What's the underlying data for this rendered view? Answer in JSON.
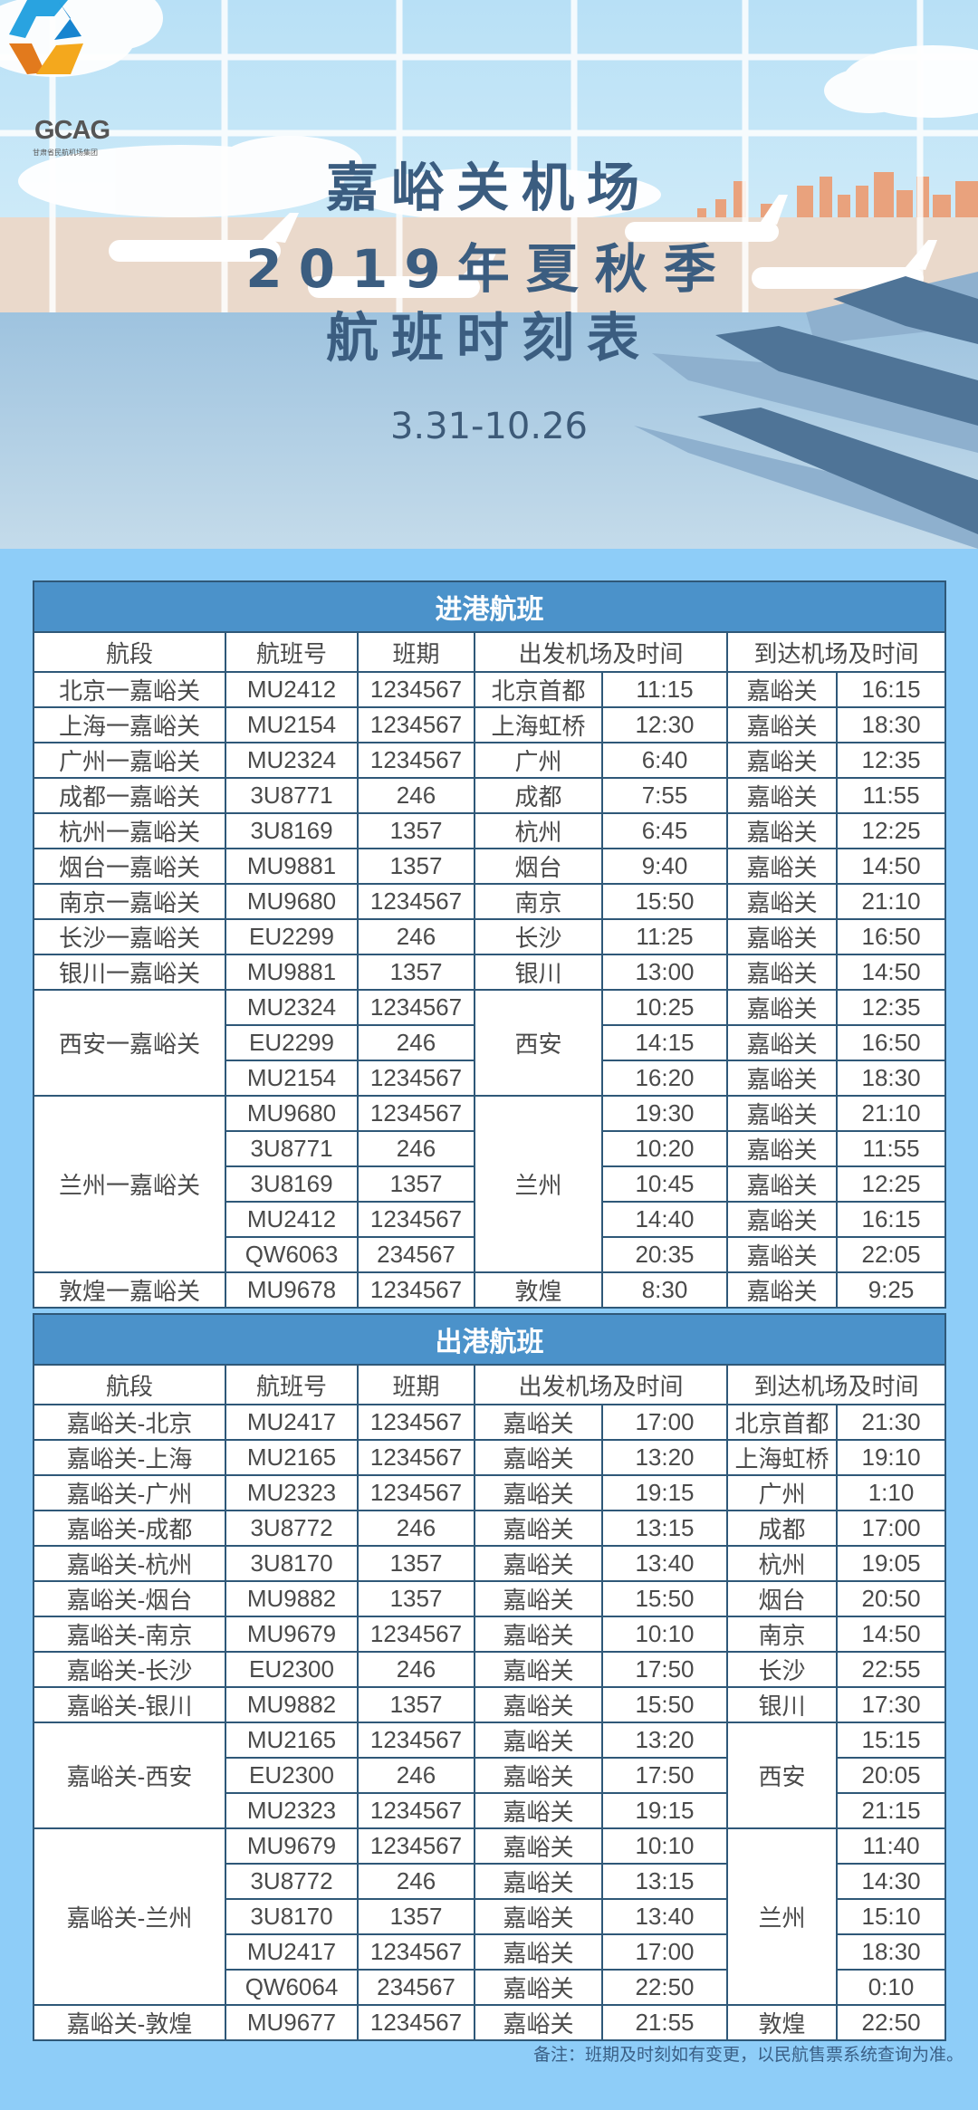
{
  "logo": {
    "text": "GCAG",
    "subtitle": "甘肃省民航机场集团"
  },
  "header": {
    "title_line1": "嘉峪关机场",
    "title_line2": "2019年夏秋季",
    "title_line3": "航班时刻表",
    "date_range": "3.31-10.26"
  },
  "colors": {
    "panel_bg": "#8ecdf8",
    "title_bar": "#4b92ca",
    "border": "#2f5878",
    "title_text": "#3b5d80"
  },
  "columns": [
    "航段",
    "航班号",
    "班期",
    "出发机场及时间",
    "到达机场及时间"
  ],
  "arrivals": {
    "title": "进港航班",
    "groups": [
      {
        "route": "北京一嘉峪关",
        "flights": [
          {
            "flight": "MU2412",
            "days": "1234567",
            "dep_airport": "北京首都",
            "dep_time": "11:15",
            "arr_airport": "嘉峪关",
            "arr_time": "16:15"
          }
        ]
      },
      {
        "route": "上海一嘉峪关",
        "flights": [
          {
            "flight": "MU2154",
            "days": "1234567",
            "dep_airport": "上海虹桥",
            "dep_time": "12:30",
            "arr_airport": "嘉峪关",
            "arr_time": "18:30"
          }
        ]
      },
      {
        "route": "广州一嘉峪关",
        "flights": [
          {
            "flight": "MU2324",
            "days": "1234567",
            "dep_airport": "广州",
            "dep_time": "6:40",
            "arr_airport": "嘉峪关",
            "arr_time": "12:35"
          }
        ]
      },
      {
        "route": "成都一嘉峪关",
        "flights": [
          {
            "flight": "3U8771",
            "days": "246",
            "dep_airport": "成都",
            "dep_time": "7:55",
            "arr_airport": "嘉峪关",
            "arr_time": "11:55"
          }
        ]
      },
      {
        "route": "杭州一嘉峪关",
        "flights": [
          {
            "flight": "3U8169",
            "days": "1357",
            "dep_airport": "杭州",
            "dep_time": "6:45",
            "arr_airport": "嘉峪关",
            "arr_time": "12:25"
          }
        ]
      },
      {
        "route": "烟台一嘉峪关",
        "flights": [
          {
            "flight": "MU9881",
            "days": "1357",
            "dep_airport": "烟台",
            "dep_time": "9:40",
            "arr_airport": "嘉峪关",
            "arr_time": "14:50"
          }
        ]
      },
      {
        "route": "南京一嘉峪关",
        "flights": [
          {
            "flight": "MU9680",
            "days": "1234567",
            "dep_airport": "南京",
            "dep_time": "15:50",
            "arr_airport": "嘉峪关",
            "arr_time": "21:10"
          }
        ]
      },
      {
        "route": "长沙一嘉峪关",
        "flights": [
          {
            "flight": "EU2299",
            "days": "246",
            "dep_airport": "长沙",
            "dep_time": "11:25",
            "arr_airport": "嘉峪关",
            "arr_time": "16:50"
          }
        ]
      },
      {
        "route": "银川一嘉峪关",
        "flights": [
          {
            "flight": "MU9881",
            "days": "1357",
            "dep_airport": "银川",
            "dep_time": "13:00",
            "arr_airport": "嘉峪关",
            "arr_time": "14:50"
          }
        ]
      },
      {
        "route": "西安一嘉峪关",
        "dep_airport": "西安",
        "flights": [
          {
            "flight": "MU2324",
            "days": "1234567",
            "dep_time": "10:25",
            "arr_airport": "嘉峪关",
            "arr_time": "12:35"
          },
          {
            "flight": "EU2299",
            "days": "246",
            "dep_time": "14:15",
            "arr_airport": "嘉峪关",
            "arr_time": "16:50"
          },
          {
            "flight": "MU2154",
            "days": "1234567",
            "dep_time": "16:20",
            "arr_airport": "嘉峪关",
            "arr_time": "18:30"
          }
        ]
      },
      {
        "route": "兰州一嘉峪关",
        "dep_airport": "兰州",
        "flights": [
          {
            "flight": "MU9680",
            "days": "1234567",
            "dep_time": "19:30",
            "arr_airport": "嘉峪关",
            "arr_time": "21:10"
          },
          {
            "flight": "3U8771",
            "days": "246",
            "dep_time": "10:20",
            "arr_airport": "嘉峪关",
            "arr_time": "11:55"
          },
          {
            "flight": "3U8169",
            "days": "1357",
            "dep_time": "10:45",
            "arr_airport": "嘉峪关",
            "arr_time": "12:25"
          },
          {
            "flight": "MU2412",
            "days": "1234567",
            "dep_time": "14:40",
            "arr_airport": "嘉峪关",
            "arr_time": "16:15"
          },
          {
            "flight": "QW6063",
            "days": "234567",
            "dep_time": "20:35",
            "arr_airport": "嘉峪关",
            "arr_time": "22:05"
          }
        ]
      },
      {
        "route": "敦煌一嘉峪关",
        "flights": [
          {
            "flight": "MU9678",
            "days": "1234567",
            "dep_airport": "敦煌",
            "dep_time": "8:30",
            "arr_airport": "嘉峪关",
            "arr_time": "9:25"
          }
        ]
      }
    ]
  },
  "departures": {
    "title": "出港航班",
    "groups": [
      {
        "route": "嘉峪关-北京",
        "flights": [
          {
            "flight": "MU2417",
            "days": "1234567",
            "dep_airport": "嘉峪关",
            "dep_time": "17:00",
            "arr_airport": "北京首都",
            "arr_time": "21:30"
          }
        ]
      },
      {
        "route": "嘉峪关-上海",
        "flights": [
          {
            "flight": "MU2165",
            "days": "1234567",
            "dep_airport": "嘉峪关",
            "dep_time": "13:20",
            "arr_airport": "上海虹桥",
            "arr_time": "19:10"
          }
        ]
      },
      {
        "route": "嘉峪关-广州",
        "flights": [
          {
            "flight": "MU2323",
            "days": "1234567",
            "dep_airport": "嘉峪关",
            "dep_time": "19:15",
            "arr_airport": "广州",
            "arr_time": "1:10"
          }
        ]
      },
      {
        "route": "嘉峪关-成都",
        "flights": [
          {
            "flight": "3U8772",
            "days": "246",
            "dep_airport": "嘉峪关",
            "dep_time": "13:15",
            "arr_airport": "成都",
            "arr_time": "17:00"
          }
        ]
      },
      {
        "route": "嘉峪关-杭州",
        "flights": [
          {
            "flight": "3U8170",
            "days": "1357",
            "dep_airport": "嘉峪关",
            "dep_time": "13:40",
            "arr_airport": "杭州",
            "arr_time": "19:05"
          }
        ]
      },
      {
        "route": "嘉峪关-烟台",
        "flights": [
          {
            "flight": "MU9882",
            "days": "1357",
            "dep_airport": "嘉峪关",
            "dep_time": "15:50",
            "arr_airport": "烟台",
            "arr_time": "20:50"
          }
        ]
      },
      {
        "route": "嘉峪关-南京",
        "flights": [
          {
            "flight": "MU9679",
            "days": "1234567",
            "dep_airport": "嘉峪关",
            "dep_time": "10:10",
            "arr_airport": "南京",
            "arr_time": "14:50"
          }
        ]
      },
      {
        "route": "嘉峪关-长沙",
        "flights": [
          {
            "flight": "EU2300",
            "days": "246",
            "dep_airport": "嘉峪关",
            "dep_time": "17:50",
            "arr_airport": "长沙",
            "arr_time": "22:55"
          }
        ]
      },
      {
        "route": "嘉峪关-银川",
        "flights": [
          {
            "flight": "MU9882",
            "days": "1357",
            "dep_airport": "嘉峪关",
            "dep_time": "15:50",
            "arr_airport": "银川",
            "arr_time": "17:30"
          }
        ]
      },
      {
        "route": "嘉峪关-西安",
        "arr_airport": "西安",
        "flights": [
          {
            "flight": "MU2165",
            "days": "1234567",
            "dep_airport": "嘉峪关",
            "dep_time": "13:20",
            "arr_time": "15:15"
          },
          {
            "flight": "EU2300",
            "days": "246",
            "dep_airport": "嘉峪关",
            "dep_time": "17:50",
            "arr_time": "20:05"
          },
          {
            "flight": "MU2323",
            "days": "1234567",
            "dep_airport": "嘉峪关",
            "dep_time": "19:15",
            "arr_time": "21:15"
          }
        ]
      },
      {
        "route": "嘉峪关-兰州",
        "arr_airport": "兰州",
        "flights": [
          {
            "flight": "MU9679",
            "days": "1234567",
            "dep_airport": "嘉峪关",
            "dep_time": "10:10",
            "arr_time": "11:40"
          },
          {
            "flight": "3U8772",
            "days": "246",
            "dep_airport": "嘉峪关",
            "dep_time": "13:15",
            "arr_time": "14:30"
          },
          {
            "flight": "3U8170",
            "days": "1357",
            "dep_airport": "嘉峪关",
            "dep_time": "13:40",
            "arr_time": "15:10"
          },
          {
            "flight": "MU2417",
            "days": "1234567",
            "dep_airport": "嘉峪关",
            "dep_time": "17:00",
            "arr_time": "18:30"
          },
          {
            "flight": "QW6064",
            "days": "234567",
            "dep_airport": "嘉峪关",
            "dep_time": "22:50",
            "arr_time": "0:10"
          }
        ]
      },
      {
        "route": "嘉峪关-敦煌",
        "flights": [
          {
            "flight": "MU9677",
            "days": "1234567",
            "dep_airport": "嘉峪关",
            "dep_time": "21:55",
            "arr_airport": "敦煌",
            "arr_time": "22:50"
          }
        ]
      }
    ]
  },
  "note": "备注：班期及时刻如有变更，以民航售票系统查询为准。"
}
